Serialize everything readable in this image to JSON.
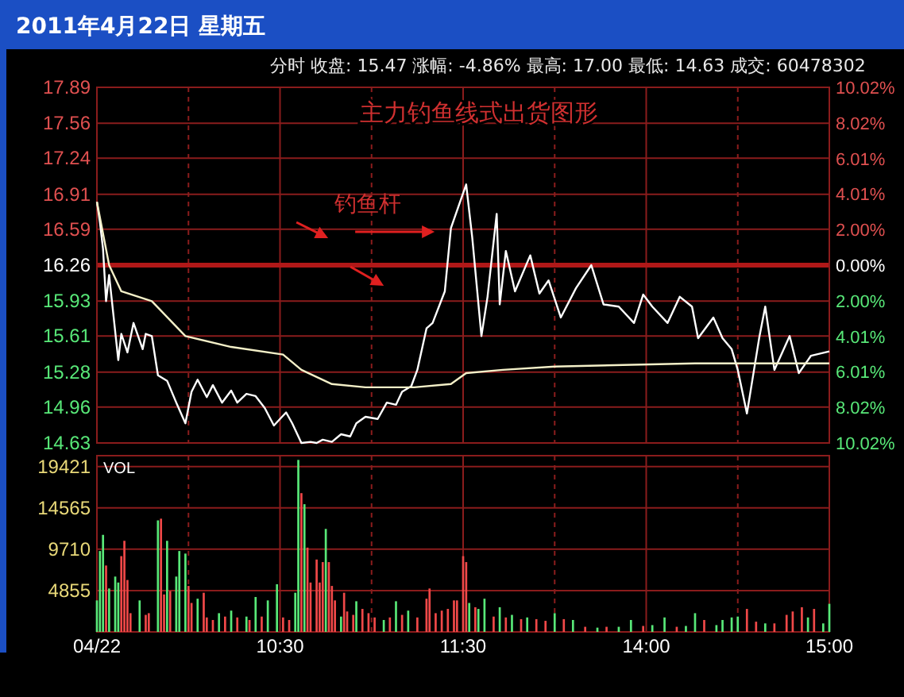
{
  "chart_data": [
    {
      "type": "line",
      "title": "主力钓鱼线式出货图形",
      "subtitle": "分时  收盘: 15.47  涨幅: -4.86%  最高: 17.00  最低: 14.63  成交: 60478302",
      "annotations": [
        "2011年4月22日  星期五",
        "钓鱼杆"
      ],
      "ylim": [
        14.63,
        17.89
      ],
      "yticks": [
        14.63,
        14.96,
        15.28,
        15.61,
        15.93,
        16.26,
        16.59,
        16.91,
        17.24,
        17.56,
        17.89
      ],
      "y2lim": [
        -10.02,
        10.02
      ],
      "y2ticks": [
        {
          "value": -10.02,
          "label": "10.02%"
        },
        {
          "value": -8.02,
          "label": "8.02%"
        },
        {
          "value": -6.01,
          "label": "6.01%"
        },
        {
          "value": -4.01,
          "label": "4.01%"
        },
        {
          "value": -2.0,
          "label": "2.00%"
        },
        {
          "value": 0,
          "label": "0.00%"
        },
        {
          "value": 2.0,
          "label": "2.00%"
        },
        {
          "value": 4.01,
          "label": "4.01%"
        },
        {
          "value": 6.01,
          "label": "6.01%"
        },
        {
          "value": 8.02,
          "label": "8.02%"
        },
        {
          "value": 10.02,
          "label": "10.02%"
        }
      ],
      "ref_lines": [
        {
          "axis": "y",
          "value": 16.26,
          "color": "#b01818"
        }
      ],
      "grid": true,
      "tick_labels": "y",
      "marker": "none",
      "line_style": "solid",
      "series": [
        {
          "color": "#ffffff",
          "values": [
            16.84,
            16.65,
            16.41,
            15.93,
            16.17,
            null,
            null,
            15.39,
            15.63,
            null,
            15.46,
            null,
            15.73,
            null,
            null,
            15.49,
            15.63,
            null,
            15.61,
            null,
            15.25,
            null,
            null,
            15.2,
            null,
            null,
            15.0,
            null,
            null,
            14.81,
            null,
            15.1,
            null,
            15.21,
            null,
            null,
            15.05,
            null,
            15.16,
            null,
            null,
            15.0,
            null,
            null,
            15.11,
            null,
            15.0,
            null,
            null,
            15.08,
            null,
            null,
            15.06,
            null,
            null,
            14.95,
            null,
            null,
            14.79,
            null,
            null,
            null,
            14.91,
            null,
            14.81,
            null,
            null,
            14.63,
            null,
            null,
            14.64,
            null,
            14.63,
            null,
            14.66,
            null,
            null,
            14.64,
            null,
            null,
            14.71,
            null,
            null,
            14.69,
            null,
            14.81,
            null,
            null,
            14.87,
            null,
            null,
            null,
            14.85,
            null,
            null,
            15.0,
            null,
            null,
            14.98,
            null,
            15.1,
            null,
            null,
            15.15,
            null,
            15.3,
            null,
            null,
            15.68,
            null,
            15.73,
            null,
            null,
            null,
            16.02,
            null,
            16.6,
            null,
            null,
            null,
            null,
            17.0,
            null,
            16.51,
            null,
            null,
            15.61,
            null,
            15.97,
            null,
            null,
            16.73,
            15.9,
            null,
            16.39,
            null,
            null,
            16.02,
            null,
            null,
            null,
            null,
            16.35,
            null,
            null,
            16.0,
            null,
            null,
            16.12,
            null,
            null,
            null,
            15.78,
            null,
            null,
            null,
            null,
            16.05,
            null,
            null,
            null,
            null,
            16.26,
            null,
            null,
            null,
            15.9,
            null,
            null,
            null,
            null,
            15.88,
            null,
            null,
            null,
            null,
            15.73,
            null,
            null,
            15.99,
            null,
            null,
            15.88,
            null,
            null,
            null,
            null,
            15.73,
            null,
            null,
            null,
            15.97,
            null,
            null,
            null,
            15.88,
            null,
            15.59,
            null,
            null,
            null,
            null,
            15.78,
            null,
            null,
            15.59,
            null,
            null,
            15.49,
            null,
            15.3,
            null,
            null,
            14.9,
            null,
            null,
            null,
            15.59,
            null,
            15.88,
            null,
            null,
            15.3,
            null,
            null,
            null,
            null,
            15.61,
            null,
            null,
            15.27,
            null,
            null,
            null,
            15.43,
            null,
            null,
            15.45,
            null,
            null,
            15.47
          ]
        },
        {
          "color": "#f4f0c8",
          "values": [
            16.84,
            null,
            null,
            null,
            16.26,
            null,
            null,
            null,
            16.02,
            null,
            null,
            null,
            null,
            null,
            null,
            null,
            null,
            null,
            15.93,
            null,
            null,
            null,
            null,
            null,
            null,
            null,
            null,
            null,
            null,
            15.61,
            null,
            null,
            null,
            null,
            null,
            null,
            null,
            null,
            null,
            null,
            null,
            null,
            null,
            null,
            15.51,
            null,
            null,
            null,
            null,
            null,
            null,
            null,
            null,
            null,
            null,
            null,
            null,
            null,
            null,
            null,
            null,
            15.44,
            null,
            null,
            null,
            null,
            null,
            15.3,
            null,
            null,
            null,
            null,
            null,
            null,
            null,
            null,
            null,
            15.17,
            null,
            null,
            null,
            null,
            null,
            null,
            null,
            null,
            null,
            null,
            15.14,
            null,
            null,
            null,
            null,
            null,
            null,
            null,
            null,
            null,
            null,
            null,
            null,
            null,
            null,
            null,
            15.14,
            null,
            null,
            null,
            null,
            null,
            null,
            null,
            null,
            null,
            null,
            null,
            15.17,
            null,
            null,
            null,
            15.25,
            15.27,
            null,
            null,
            null,
            null,
            null,
            null,
            null,
            null,
            null,
            null,
            null,
            15.3,
            null,
            null,
            null,
            null,
            null,
            null,
            null,
            null,
            null,
            null,
            null,
            null,
            null,
            null,
            null,
            null,
            15.33,
            null,
            null,
            null,
            null,
            null,
            null,
            null,
            null,
            null,
            null,
            null,
            null,
            null,
            null,
            null,
            null,
            null,
            null,
            null,
            null,
            null,
            null,
            null,
            null,
            null,
            null,
            null,
            null,
            null,
            null,
            null,
            null,
            null,
            null,
            null,
            null,
            null,
            null,
            null,
            null,
            null,
            null,
            null,
            null,
            null,
            15.36,
            null,
            null,
            null,
            null,
            null,
            null,
            null,
            null,
            null,
            null,
            null,
            null,
            null,
            null,
            null,
            null,
            null,
            null,
            null,
            null,
            null,
            null,
            null,
            null,
            null,
            null,
            null,
            null,
            null,
            null,
            null,
            null,
            null,
            null,
            null,
            null,
            null,
            null,
            null,
            null,
            null,
            null,
            null,
            15.36
          ]
        }
      ]
    },
    {
      "type": "bar",
      "ylabel": "VOL",
      "categories": [
        "04/22",
        null,
        null,
        null,
        null,
        null,
        null,
        null,
        null,
        null,
        null,
        null,
        null,
        null,
        null,
        null,
        null,
        null,
        null,
        null,
        null,
        null,
        null,
        null,
        null,
        null,
        null,
        null,
        null,
        null,
        null,
        null,
        null,
        null,
        null,
        null,
        null,
        null,
        null,
        null,
        null,
        null,
        null,
        null,
        null,
        null,
        null,
        null,
        null,
        null,
        null,
        null,
        null,
        null,
        null,
        null,
        null,
        null,
        null,
        null,
        "10:30",
        null,
        null,
        null,
        null,
        null,
        null,
        null,
        null,
        null,
        null,
        null,
        null,
        null,
        null,
        null,
        null,
        null,
        null,
        null,
        null,
        null,
        null,
        null,
        null,
        null,
        null,
        null,
        null,
        null,
        null,
        null,
        null,
        null,
        null,
        null,
        null,
        null,
        null,
        null,
        null,
        null,
        null,
        null,
        null,
        null,
        null,
        null,
        null,
        null,
        null,
        null,
        null,
        null,
        null,
        null,
        null,
        null,
        null,
        null,
        "11:30",
        null,
        null,
        null,
        null,
        null,
        null,
        null,
        null,
        null,
        null,
        null,
        null,
        null,
        null,
        null,
        null,
        null,
        null,
        null,
        null,
        null,
        null,
        null,
        null,
        null,
        null,
        null,
        null,
        null,
        null,
        null,
        null,
        null,
        null,
        null,
        null,
        null,
        null,
        null,
        null,
        null,
        null,
        null,
        null,
        null,
        null,
        null,
        null,
        null,
        null,
        null,
        null,
        null,
        null,
        null,
        null,
        null,
        null,
        null,
        "14:00",
        null,
        null,
        null,
        null,
        null,
        null,
        null,
        null,
        null,
        null,
        null,
        null,
        null,
        null,
        null,
        null,
        null,
        null,
        null,
        null,
        null,
        null,
        null,
        null,
        null,
        null,
        null,
        null,
        null,
        null,
        null,
        null,
        null,
        null,
        null,
        null,
        null,
        null,
        null,
        null,
        null,
        null,
        null,
        null,
        null,
        null,
        null,
        null,
        null,
        null,
        null,
        null,
        null,
        null,
        null,
        null,
        null,
        null,
        null,
        "15:00"
      ],
      "ylim": [
        0,
        20700
      ],
      "yticks": [
        4855,
        9710,
        14565,
        19421
      ],
      "grid": true,
      "series": [
        {
          "color": "#f04848",
          "values": [
            null,
            null,
            null,
            7800,
            null,
            null,
            null,
            null,
            8900,
            10700,
            6100,
            2200,
            null,
            null,
            null,
            null,
            2000,
            2200,
            null,
            null,
            null,
            13300,
            4400,
            null,
            4800,
            null,
            null,
            null,
            null,
            null,
            5400,
            3400,
            null,
            null,
            null,
            4600,
            1700,
            null,
            1400,
            null,
            null,
            null,
            1800,
            null,
            null,
            null,
            1700,
            null,
            null,
            null,
            1400,
            null,
            null,
            null,
            1800,
            null,
            null,
            null,
            null,
            null,
            null,
            1700,
            null,
            1400,
            null,
            null,
            null,
            16300,
            null,
            9900,
            5800,
            null,
            8500,
            5800,
            8200,
            null,
            8200,
            5400,
            3700,
            null,
            null,
            4600,
            2400,
            null,
            2000,
            null,
            null,
            2700,
            null,
            2200,
            null,
            1700,
            null,
            null,
            null,
            null,
            1700,
            null,
            null,
            null,
            2000,
            null,
            null,
            null,
            null,
            1700,
            null,
            null,
            3900,
            5100,
            null,
            2200,
            null,
            2500,
            null,
            2700,
            null,
            3700,
            3700,
            null,
            8900,
            8200,
            null,
            null,
            2900,
            null,
            null,
            null,
            null,
            null,
            1800,
            null,
            null,
            null,
            1700,
            null,
            null,
            null,
            null,
            1500,
            null,
            null,
            null,
            null,
            1500,
            null,
            null,
            1300,
            null,
            null,
            null,
            null,
            null,
            1500,
            null,
            null,
            null,
            null,
            null,
            null,
            600,
            null,
            null,
            null,
            null,
            null,
            null,
            600,
            null,
            null,
            null,
            null,
            null,
            null,
            null,
            null,
            null,
            null,
            null,
            700,
            null,
            null,
            null,
            null,
            null,
            null,
            null,
            null,
            null,
            null,
            600,
            null,
            null,
            null,
            null,
            null,
            null,
            null,
            null,
            1400,
            null,
            null,
            null,
            null,
            null,
            null,
            null,
            null,
            null,
            null,
            null,
            null,
            null,
            2700,
            null,
            null,
            1200,
            null,
            null,
            null,
            null,
            null,
            1000,
            null,
            null,
            null,
            2000,
            null,
            2400,
            null,
            null,
            2900,
            null,
            null,
            null,
            2700,
            null,
            null,
            null,
            null,
            null
          ]
        },
        {
          "color": "#58e878",
          "values": [
            3700,
            9500,
            11400,
            null,
            5100,
            null,
            6500,
            5800,
            null,
            null,
            null,
            null,
            null,
            null,
            3700,
            null,
            null,
            null,
            null,
            null,
            13100,
            null,
            null,
            10700,
            null,
            null,
            6500,
            9500,
            null,
            9200,
            null,
            null,
            null,
            3900,
            null,
            null,
            null,
            null,
            null,
            null,
            2200,
            null,
            null,
            null,
            2500,
            null,
            null,
            null,
            null,
            1800,
            null,
            null,
            4100,
            null,
            null,
            null,
            3700,
            null,
            null,
            5600,
            null,
            null,
            null,
            null,
            null,
            4600,
            20200,
            null,
            15000,
            null,
            null,
            null,
            null,
            null,
            null,
            12100,
            null,
            null,
            null,
            null,
            1800,
            null,
            null,
            null,
            null,
            3600,
            null,
            null,
            null,
            null,
            null,
            null,
            null,
            null,
            1400,
            null,
            null,
            null,
            3600,
            null,
            null,
            null,
            2500,
            null,
            null,
            null,
            null,
            null,
            null,
            null,
            null,
            null,
            null,
            null,
            null,
            null,
            null,
            null,
            null,
            null,
            null,
            null,
            3400,
            null,
            null,
            2700,
            null,
            3900,
            null,
            null,
            null,
            null,
            2900,
            null,
            null,
            null,
            2000,
            null,
            null,
            null,
            null,
            1700,
            null,
            null,
            null,
            null,
            null,
            null,
            null,
            null,
            2200,
            null,
            null,
            null,
            null,
            null,
            1400,
            null,
            null,
            null,
            null,
            null,
            null,
            null,
            500,
            null,
            null,
            null,
            null,
            null,
            null,
            600,
            null,
            null,
            null,
            1400,
            null,
            null,
            null,
            null,
            null,
            null,
            800,
            null,
            null,
            null,
            1700,
            null,
            null,
            null,
            null,
            null,
            null,
            700,
            null,
            null,
            2200,
            null,
            null,
            null,
            null,
            null,
            null,
            800,
            null,
            1400,
            null,
            null,
            1700,
            null,
            1800,
            null,
            null,
            null,
            null,
            null,
            null,
            null,
            null,
            1000,
            null,
            null,
            null,
            null,
            null,
            null,
            null,
            null,
            null,
            null,
            null,
            null,
            null,
            1700,
            null,
            null,
            null,
            null,
            1000,
            null,
            3300
          ]
        }
      ]
    }
  ]
}
